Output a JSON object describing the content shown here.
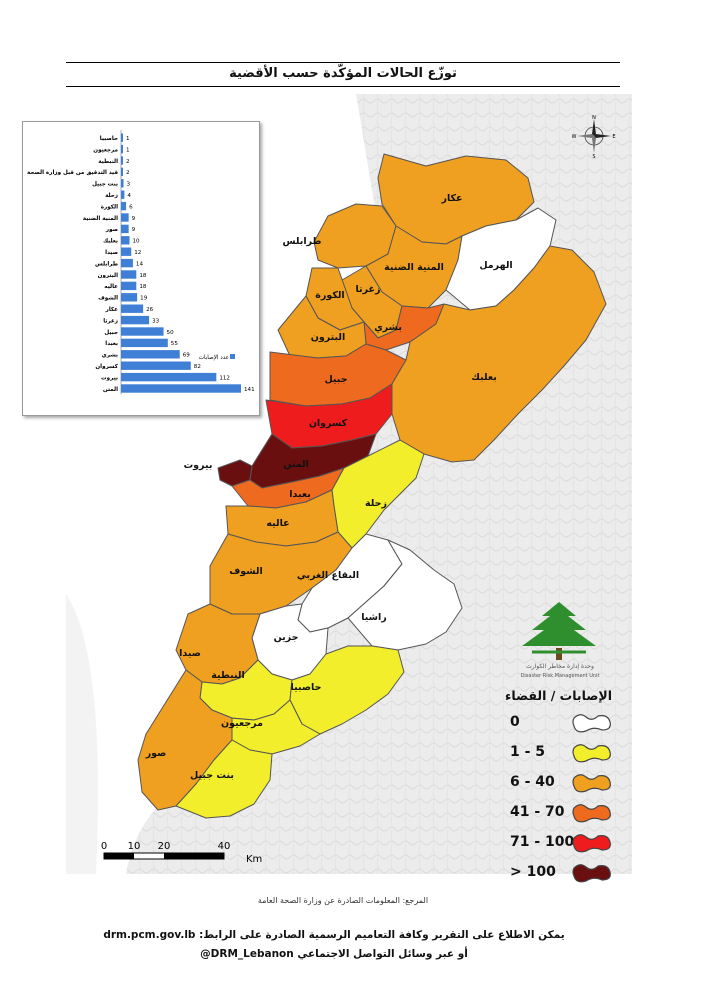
{
  "title": "توزّع الحالات المؤكّدة حسب الأقضية",
  "chart": {
    "legend_label": "عدد الإصابات",
    "categories": [
      "حاصبيا",
      "مرجعيون",
      "النبطية",
      "قيد التدقيق من قبل وزارة الصحة",
      "بنت جبيل",
      "زحلة",
      "الكورة",
      "المنية الضنية",
      "صور",
      "بعلبك",
      "صيدا",
      "طرابلس",
      "البترون",
      "عاليه",
      "الشوف",
      "عكار",
      "زغرتا",
      "جبيل",
      "بعبدا",
      "بشري",
      "كسروان",
      "بيروت",
      "المتن"
    ],
    "values": [
      1,
      1,
      2,
      2,
      3,
      4,
      6,
      9,
      9,
      10,
      12,
      14,
      18,
      18,
      19,
      26,
      33,
      50,
      55,
      69,
      82,
      112,
      141
    ],
    "bar_color": "#3f7fd6"
  },
  "map": {
    "district_labels": [
      {
        "text": "عكار"
      },
      {
        "text": "طرابلس"
      },
      {
        "text": "المنية الضنية"
      },
      {
        "text": "الهرمل"
      },
      {
        "text": "زغرتا"
      },
      {
        "text": "الكورة"
      },
      {
        "text": "بشري"
      },
      {
        "text": "البترون"
      },
      {
        "text": "جبيل"
      },
      {
        "text": "بعلبك"
      },
      {
        "text": "كسروان"
      },
      {
        "text": "بيروت"
      },
      {
        "text": "المتن"
      },
      {
        "text": "بعبدا"
      },
      {
        "text": "زحلة"
      },
      {
        "text": "عاليه"
      },
      {
        "text": "الشوف"
      },
      {
        "text": "البقاع الغربي"
      },
      {
        "text": "راشيا"
      },
      {
        "text": "جزين"
      },
      {
        "text": "صيدا"
      },
      {
        "text": "النبطية"
      },
      {
        "text": "حاصبيا"
      },
      {
        "text": "مرجعيون"
      },
      {
        "text": "صور"
      },
      {
        "text": "بنت جبيل"
      }
    ],
    "logo_text": "وحدة إدارة مخاطر الكوارث",
    "logo_text_en": "Disaster Risk Management Unit"
  },
  "legend": {
    "title": "الإصابات / القضاء",
    "items": [
      {
        "label": "0",
        "color": "#ffffff"
      },
      {
        "label": "1 - 5",
        "color": "#f2ee2c"
      },
      {
        "label": "6 - 40",
        "color": "#f0a020"
      },
      {
        "label": "41 - 70",
        "color": "#ee6a1e"
      },
      {
        "label": "71 - 100",
        "color": "#ee1c1c"
      },
      {
        "label": "> 100",
        "color": "#6a0f0f"
      }
    ]
  },
  "compass": {
    "n": "N",
    "s": "S",
    "e": "E",
    "w": "W"
  },
  "scale": {
    "ticks": [
      "0",
      "10",
      "20",
      "40"
    ],
    "unit": "Km"
  },
  "source": "المرجع: المعلومات الصادرة عن وزارة الصحة العامة",
  "footer": {
    "line1": "يمكن الاطلاع على التقرير وكافة التعاميم الرسمية الصادرة على الرابط: drm.pcm.gov.lb",
    "line2": "أو عبر وسائل التواصل الاجتماعي DRM_Lebanon@"
  }
}
